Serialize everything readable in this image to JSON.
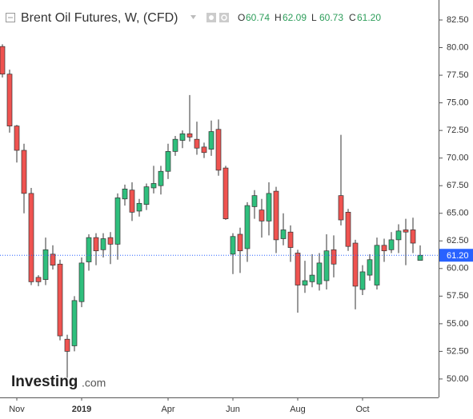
{
  "chart_data": {
    "type": "candlestick",
    "title": "Brent Oil Futures, W, (CFD)",
    "header": [
      {
        "name": "O",
        "value": 60.74
      },
      {
        "name": "H",
        "value": 62.09
      },
      {
        "name": "L",
        "value": 60.73
      },
      {
        "name": "C",
        "value": 61.2,
        "label": "61.20"
      }
    ],
    "last_price": {
      "value": 61.2,
      "label": "61.20"
    },
    "logo": {
      "name": "Investing",
      "suffix": ".com"
    },
    "categories": [
      null,
      null,
      "Nov",
      null,
      null,
      null,
      null,
      null,
      null,
      null,
      null,
      "2019",
      null,
      null,
      null,
      null,
      null,
      null,
      null,
      null,
      null,
      null,
      null,
      "Apr",
      null,
      null,
      null,
      null,
      null,
      null,
      null,
      null,
      "Jun",
      null,
      null,
      null,
      null,
      null,
      null,
      null,
      null,
      "Aug",
      null,
      null,
      null,
      null,
      null,
      null,
      null,
      null,
      "Oct",
      null,
      null,
      null,
      null,
      null,
      null,
      null,
      null
    ],
    "open": [
      80.1,
      77.6,
      72.9,
      70.7,
      66.8,
      59.2,
      59.0,
      61.3,
      60.4,
      53.6,
      53.0,
      57.0,
      60.6,
      62.8,
      61.7,
      62.8,
      62.2,
      66.3,
      67.1,
      65.2,
      65.8,
      67.3,
      67.5,
      68.8,
      70.6,
      71.6,
      72.2,
      71.7,
      71.0,
      70.8,
      72.6,
      69.1,
      61.3,
      63.1,
      61.8,
      65.6,
      65.3,
      64.3,
      67.0,
      62.7,
      63.3,
      61.4,
      58.5,
      58.8,
      58.6,
      58.9,
      61.7,
      66.6,
      65.1,
      62.3,
      58.1,
      59.4,
      58.5,
      62.1,
      61.7,
      62.6,
      63.5,
      63.5,
      60.74
    ],
    "high": [
      80.3,
      78.0,
      73.0,
      71.3,
      67.3,
      59.4,
      62.8,
      62.1,
      60.8,
      54.0,
      57.5,
      61.0,
      63.1,
      63.2,
      63.2,
      63.3,
      66.8,
      67.6,
      67.8,
      66.3,
      67.7,
      69.3,
      69.3,
      71.3,
      72.0,
      72.5,
      75.7,
      73.3,
      71.4,
      73.4,
      73.5,
      69.3,
      63.2,
      63.7,
      66.0,
      67.1,
      66.3,
      67.8,
      67.4,
      65.0,
      63.9,
      61.7,
      60.7,
      61.3,
      61.4,
      63.1,
      63.0,
      72.1,
      65.4,
      62.6,
      60.3,
      61.3,
      62.8,
      62.7,
      63.3,
      64.0,
      64.5,
      64.6,
      62.09
    ],
    "low": [
      77.3,
      72.3,
      69.6,
      65.0,
      58.5,
      58.4,
      58.5,
      59.9,
      53.5,
      50.1,
      52.5,
      56.5,
      59.8,
      60.3,
      61.0,
      60.4,
      60.8,
      65.7,
      64.3,
      64.7,
      65.3,
      66.8,
      66.7,
      68.1,
      70.2,
      70.9,
      71.5,
      70.3,
      70.0,
      70.2,
      68.4,
      64.4,
      59.5,
      59.6,
      60.6,
      64.5,
      62.8,
      63.0,
      61.4,
      62.1,
      60.6,
      56.0,
      57.8,
      58.3,
      58.0,
      58.1,
      59.2,
      63.9,
      61.6,
      56.3,
      57.6,
      58.9,
      58.1,
      60.6,
      61.4,
      61.4,
      60.3,
      61.4,
      60.73
    ],
    "close": [
      77.6,
      72.9,
      70.7,
      66.8,
      58.8,
      58.8,
      61.7,
      60.3,
      53.9,
      52.5,
      57.1,
      60.5,
      62.8,
      61.6,
      62.7,
      62.2,
      66.4,
      67.2,
      65.1,
      65.9,
      67.4,
      67.7,
      68.8,
      70.6,
      71.7,
      72.2,
      71.9,
      70.9,
      70.5,
      72.4,
      68.9,
      64.5,
      62.9,
      61.6,
      65.7,
      66.6,
      64.3,
      66.8,
      62.6,
      63.5,
      61.9,
      58.5,
      58.9,
      59.4,
      60.5,
      61.6,
      60.4,
      64.4,
      62.0,
      58.4,
      59.7,
      60.8,
      62.1,
      61.6,
      62.6,
      63.4,
      63.3,
      62.3,
      61.2
    ],
    "up_color": "#2fbf7d",
    "down_color": "#ef5350",
    "ylim": [
      48.33,
      84.31
    ],
    "yticks": [
      {
        "value": 50,
        "label": "50.00"
      },
      {
        "value": 52.5,
        "label": "52.50"
      },
      {
        "value": 55,
        "label": "55.00"
      },
      {
        "value": 57.5,
        "label": "57.50"
      },
      {
        "value": 60,
        "label": "60.00"
      },
      {
        "value": 62.5,
        "label": "62.50"
      },
      {
        "value": 65,
        "label": "65.00"
      },
      {
        "value": 67.5,
        "label": "67.50"
      },
      {
        "value": 70,
        "label": "70.00"
      },
      {
        "value": 72.5,
        "label": "72.50"
      },
      {
        "value": 75,
        "label": "75.00"
      },
      {
        "value": 77.5,
        "label": "77.50"
      },
      {
        "value": 80,
        "label": "80.00"
      },
      {
        "value": 82.5,
        "label": "82.50"
      }
    ],
    "grid": false
  }
}
